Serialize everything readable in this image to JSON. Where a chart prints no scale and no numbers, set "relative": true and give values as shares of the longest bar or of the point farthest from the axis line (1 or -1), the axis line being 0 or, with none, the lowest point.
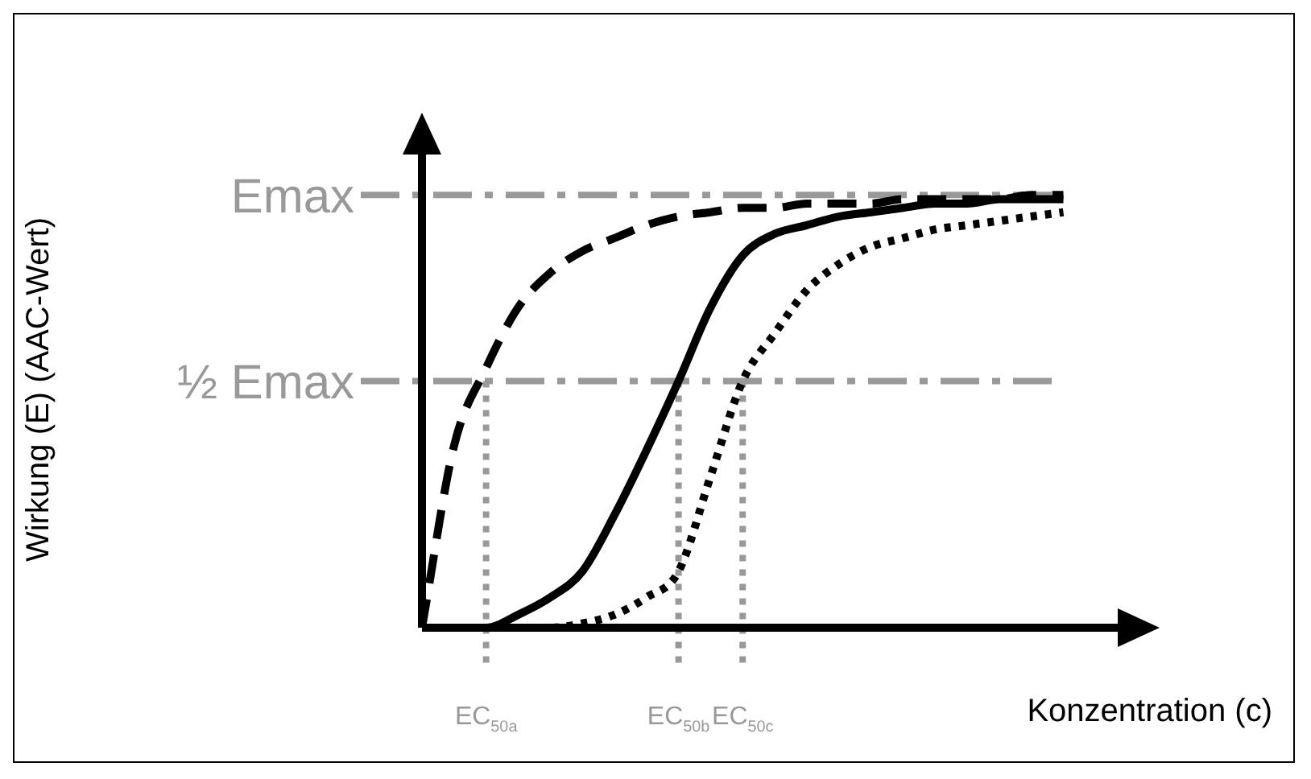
{
  "chart_data": {
    "type": "line",
    "relative": true,
    "xlabel": "Konzentration (c)",
    "annotations": [
      "Wirkung (E) (AAC-Wert)"
    ],
    "legend": false,
    "marker": "none",
    "tick_labels": "x",
    "categories": [
      null,
      null,
      "EC$_{50a}$",
      null,
      null,
      null,
      null,
      null,
      "EC$_{50b}$",
      null,
      "EC$_{50c}$",
      null,
      null,
      null,
      null,
      null,
      null,
      null,
      null,
      null,
      null
    ],
    "series": [
      {
        "color": "#000000",
        "line_style": "dashed",
        "values": [
          0,
          0.42,
          0.6,
          0.74,
          0.82,
          0.87,
          0.9,
          0.93,
          0.95,
          0.96,
          0.97,
          0.97,
          0.98,
          0.98,
          0.98,
          0.99,
          0.99,
          0.99,
          0.99,
          1,
          1
        ]
      },
      {
        "color": "#000000",
        "line_style": "solid",
        "values": [
          0,
          0,
          0,
          0.03,
          0.07,
          0.13,
          0.26,
          0.41,
          0.57,
          0.74,
          0.86,
          0.91,
          0.93,
          0.95,
          0.96,
          0.97,
          0.98,
          0.98,
          0.99,
          0.99,
          0.99
        ]
      },
      {
        "color": "#000000",
        "line_style": "dotted",
        "values": [
          0,
          0,
          0,
          0,
          0,
          0.01,
          0.03,
          0.07,
          0.13,
          0.35,
          0.57,
          0.68,
          0.78,
          0.84,
          0.88,
          0.9,
          0.92,
          0.93,
          0.94,
          0.95,
          0.96
        ]
      }
    ],
    "ref_lines": [
      {
        "axis": "y",
        "value": 1,
        "label": "Emax",
        "color": "#999999",
        "line_style": "dashdot"
      },
      {
        "axis": "y",
        "value": 0.57,
        "label": "½ Emax",
        "color": "#999999",
        "line_style": "dashdot"
      },
      {
        "axis": "x",
        "value": "EC$_{50a}$",
        "color": "#999999",
        "line_style": "dotted"
      },
      {
        "axis": "x",
        "value": "EC$_{50b}$",
        "color": "#999999",
        "line_style": "dotted"
      },
      {
        "axis": "x",
        "value": "EC$_{50c}$",
        "color": "#999999",
        "line_style": "dotted"
      }
    ]
  }
}
